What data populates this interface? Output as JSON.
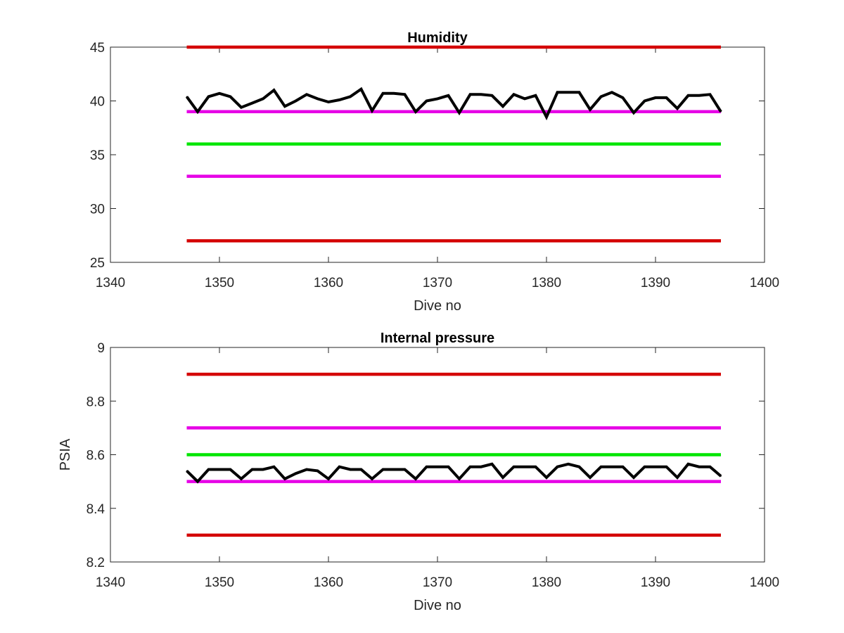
{
  "chart_data": [
    {
      "type": "line",
      "title": "Humidity",
      "xlabel": "Dive no",
      "ylabel": "",
      "xlim": [
        1340,
        1400
      ],
      "ylim": [
        25,
        45
      ],
      "xticks": [
        1340,
        1350,
        1360,
        1370,
        1380,
        1390,
        1400
      ],
      "yticks": [
        25,
        30,
        35,
        40,
        45
      ],
      "grid": false,
      "limit_lines": [
        {
          "y": 45,
          "x": [
            1347,
            1396
          ],
          "color": "#d40000"
        },
        {
          "y": 39,
          "x": [
            1347,
            1396
          ],
          "color": "#e600e6"
        },
        {
          "y": 36,
          "x": [
            1347,
            1396
          ],
          "color": "#00e600"
        },
        {
          "y": 33,
          "x": [
            1347,
            1396
          ],
          "color": "#e600e6"
        },
        {
          "y": 27,
          "x": [
            1347,
            1396
          ],
          "color": "#d40000"
        }
      ],
      "series": [
        {
          "color": "#000000",
          "x": [
            1347,
            1348,
            1349,
            1350,
            1351,
            1352,
            1353,
            1354,
            1355,
            1356,
            1357,
            1358,
            1359,
            1360,
            1361,
            1362,
            1363,
            1364,
            1365,
            1366,
            1367,
            1368,
            1369,
            1370,
            1371,
            1372,
            1373,
            1374,
            1375,
            1376,
            1377,
            1378,
            1379,
            1380,
            1381,
            1382,
            1383,
            1384,
            1385,
            1386,
            1387,
            1388,
            1389,
            1390,
            1391,
            1392,
            1393,
            1394,
            1395,
            1396
          ],
          "y": [
            40.4,
            39.0,
            40.4,
            40.7,
            40.4,
            39.4,
            39.8,
            40.2,
            41.0,
            39.5,
            40.0,
            40.6,
            40.2,
            39.9,
            40.1,
            40.4,
            41.1,
            39.1,
            40.7,
            40.7,
            40.6,
            39.0,
            40.0,
            40.2,
            40.5,
            38.9,
            40.6,
            40.6,
            40.5,
            39.5,
            40.6,
            40.2,
            40.5,
            38.5,
            40.8,
            40.8,
            40.8,
            39.2,
            40.4,
            40.8,
            40.3,
            38.9,
            40.0,
            40.3,
            40.3,
            39.3,
            40.5,
            40.5,
            40.6,
            39.0
          ]
        }
      ]
    },
    {
      "type": "line",
      "title": "Internal pressure",
      "xlabel": "Dive no",
      "ylabel": "PSIA",
      "xlim": [
        1340,
        1400
      ],
      "ylim": [
        8.2,
        9.0
      ],
      "xticks": [
        1340,
        1350,
        1360,
        1370,
        1380,
        1390,
        1400
      ],
      "yticks": [
        "8.2",
        "8.4",
        "8.6",
        "8.8",
        "9"
      ],
      "grid": false,
      "limit_lines": [
        {
          "y": 8.9,
          "x": [
            1347,
            1396
          ],
          "color": "#d40000"
        },
        {
          "y": 8.7,
          "x": [
            1347,
            1396
          ],
          "color": "#e600e6"
        },
        {
          "y": 8.6,
          "x": [
            1347,
            1396
          ],
          "color": "#00e600"
        },
        {
          "y": 8.5,
          "x": [
            1347,
            1396
          ],
          "color": "#e600e6"
        },
        {
          "y": 8.3,
          "x": [
            1347,
            1396
          ],
          "color": "#d40000"
        }
      ],
      "series": [
        {
          "color": "#000000",
          "x": [
            1347,
            1348,
            1349,
            1350,
            1351,
            1352,
            1353,
            1354,
            1355,
            1356,
            1357,
            1358,
            1359,
            1360,
            1361,
            1362,
            1363,
            1364,
            1365,
            1366,
            1367,
            1368,
            1369,
            1370,
            1371,
            1372,
            1373,
            1374,
            1375,
            1376,
            1377,
            1378,
            1379,
            1380,
            1381,
            1382,
            1383,
            1384,
            1385,
            1386,
            1387,
            1388,
            1389,
            1390,
            1391,
            1392,
            1393,
            1394,
            1395,
            1396
          ],
          "y": [
            8.54,
            8.5,
            8.545,
            8.545,
            8.545,
            8.51,
            8.545,
            8.545,
            8.555,
            8.51,
            8.53,
            8.545,
            8.54,
            8.51,
            8.555,
            8.545,
            8.545,
            8.51,
            8.545,
            8.545,
            8.545,
            8.51,
            8.555,
            8.555,
            8.555,
            8.51,
            8.555,
            8.555,
            8.565,
            8.515,
            8.555,
            8.555,
            8.555,
            8.515,
            8.555,
            8.565,
            8.555,
            8.515,
            8.555,
            8.555,
            8.555,
            8.515,
            8.555,
            8.555,
            8.555,
            8.515,
            8.565,
            8.555,
            8.555,
            8.52
          ]
        }
      ]
    }
  ]
}
